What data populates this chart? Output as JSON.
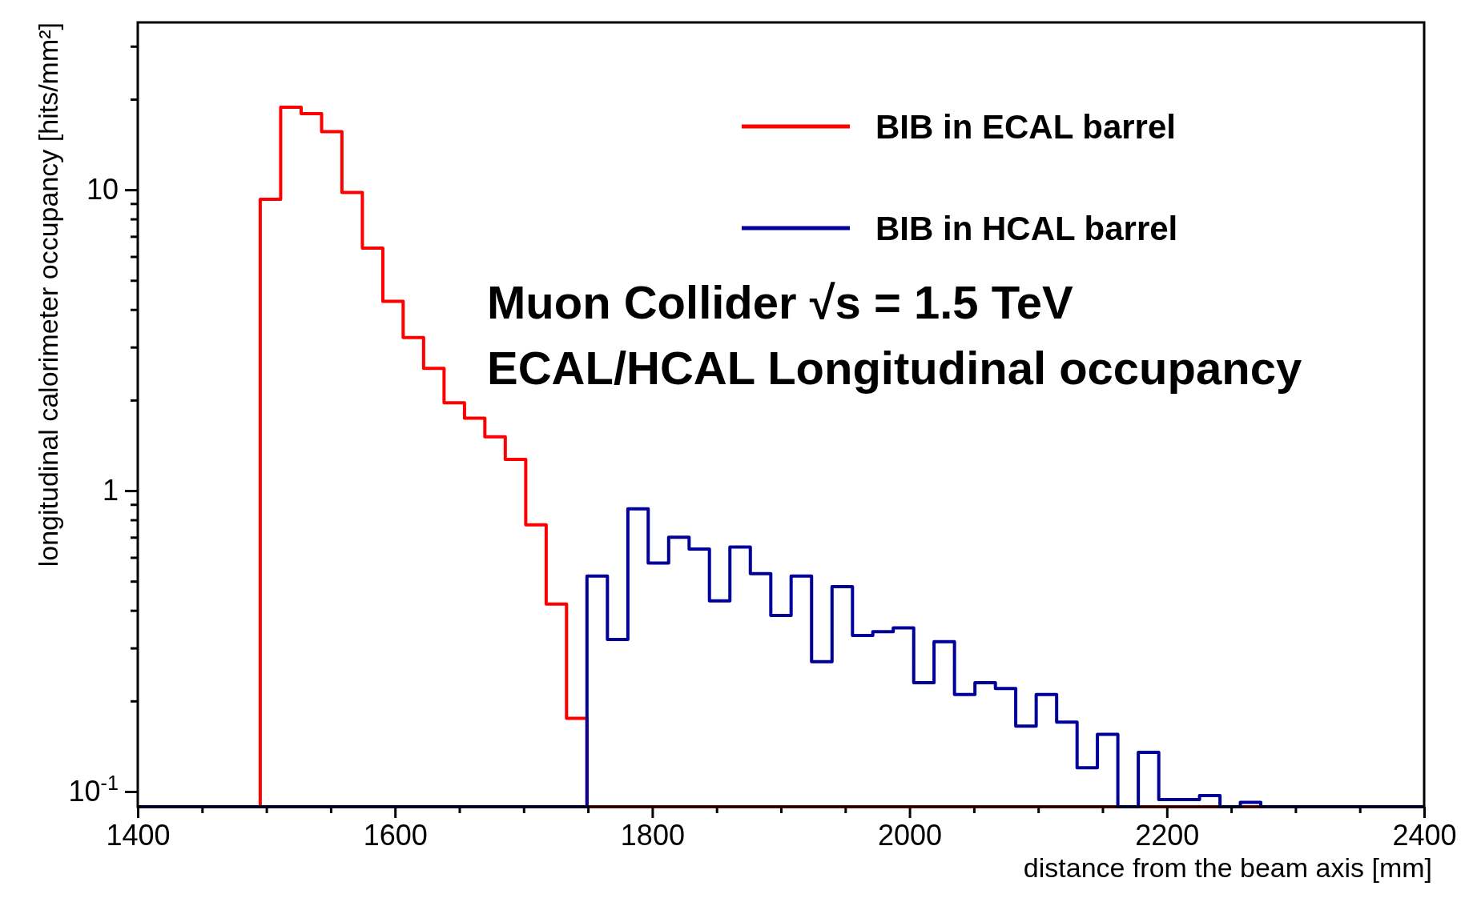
{
  "chart_data": {
    "type": "histogram",
    "xlabel": "distance from the beam axis [mm]",
    "ylabel": "longitudinal calorimeter occupancy [hits/mm²]",
    "bins": [
      1400,
      1415.9,
      1431.7,
      1447.6,
      1463.5,
      1479.4,
      1495.2,
      1511.1,
      1527,
      1542.9,
      1558.7,
      1574.6,
      1590.5,
      1606.3,
      1622.2,
      1638.1,
      1654,
      1669.8,
      1685.7,
      1701.6,
      1717.5,
      1733.3,
      1749.2,
      1765.1,
      1781,
      1796.8,
      1812.7,
      1828.6,
      1844.4,
      1860.3,
      1876.2,
      1892.1,
      1907.9,
      1923.8,
      1939.7,
      1955.6,
      1971.4,
      1987.3,
      2003.2,
      2019,
      2034.9,
      2050.8,
      2066.7,
      2082.5,
      2098.4,
      2114.3,
      2130.2,
      2146,
      2161.9,
      2177.8,
      2193.7,
      2209.5,
      2225.4,
      2241.3,
      2257.1,
      2273,
      2288.9,
      2304.8,
      2320.6,
      2336.5,
      2352.4,
      2368.3,
      2384.1,
      2400
    ],
    "series": [
      {
        "name": "BIB in ECAL barrel",
        "color": "#ff0000",
        "values": [
          null,
          null,
          null,
          null,
          null,
          null,
          9.3,
          18.8,
          17.9,
          15.6,
          9.8,
          6.4,
          4.26,
          3.23,
          2.55,
          1.96,
          1.74,
          1.51,
          1.27,
          0.77,
          0.42,
          0.175,
          null,
          null,
          null,
          null,
          null,
          null,
          null,
          null,
          null,
          null,
          null,
          null,
          null,
          null,
          null,
          null,
          null,
          null,
          null,
          null,
          null,
          null,
          null,
          null,
          null,
          null,
          null,
          null,
          null,
          null,
          null,
          null,
          null,
          null,
          null,
          null,
          null,
          null,
          null,
          null,
          null
        ]
      },
      {
        "name": "BIB in HCAL barrel",
        "color": "#000099",
        "values": [
          null,
          null,
          null,
          null,
          null,
          null,
          null,
          null,
          null,
          null,
          null,
          null,
          null,
          null,
          null,
          null,
          null,
          null,
          null,
          null,
          null,
          null,
          0.52,
          0.32,
          0.87,
          0.575,
          0.7,
          0.64,
          0.43,
          0.65,
          0.53,
          0.385,
          0.52,
          0.27,
          0.48,
          0.33,
          0.34,
          0.35,
          0.23,
          0.315,
          0.21,
          0.23,
          0.22,
          0.165,
          0.21,
          0.17,
          0.12,
          0.155,
          null,
          0.135,
          0.094,
          0.094,
          0.097,
          null,
          0.092,
          null,
          null,
          null,
          null,
          null,
          null,
          null,
          null
        ]
      }
    ],
    "log": "y",
    "xlim": [
      1400,
      2400
    ],
    "xticks": [
      1400,
      {
        "value": 1450,
        "label": null
      },
      {
        "value": 1500,
        "label": null
      },
      {
        "value": 1550,
        "label": null
      },
      1600,
      {
        "value": 1650,
        "label": null
      },
      {
        "value": 1700,
        "label": null
      },
      {
        "value": 1750,
        "label": null
      },
      1800,
      {
        "value": 1850,
        "label": null
      },
      {
        "value": 1900,
        "label": null
      },
      {
        "value": 1950,
        "label": null
      },
      2000,
      {
        "value": 2050,
        "label": null
      },
      {
        "value": 2100,
        "label": null
      },
      {
        "value": 2150,
        "label": null
      },
      2200,
      {
        "value": 2250,
        "label": null
      },
      {
        "value": 2300,
        "label": null
      },
      {
        "value": 2350,
        "label": null
      },
      2400
    ],
    "ylim": [
      0.089,
      36
    ],
    "yticks": [
      {
        "value": 0.1,
        "label": "10$^{-1}$"
      },
      {
        "value": 0.2,
        "label": null
      },
      {
        "value": 0.3,
        "label": null
      },
      {
        "value": 0.4,
        "label": null
      },
      {
        "value": 0.5,
        "label": null
      },
      {
        "value": 0.6,
        "label": null
      },
      {
        "value": 0.7,
        "label": null
      },
      {
        "value": 0.8,
        "label": null
      },
      {
        "value": 0.9,
        "label": null
      },
      1,
      {
        "value": 2,
        "label": null
      },
      {
        "value": 3,
        "label": null
      },
      {
        "value": 4,
        "label": null
      },
      {
        "value": 5,
        "label": null
      },
      {
        "value": 6,
        "label": null
      },
      {
        "value": 7,
        "label": null
      },
      {
        "value": 8,
        "label": null
      },
      {
        "value": 9,
        "label": null
      },
      10,
      {
        "value": 20,
        "label": null
      },
      {
        "value": 30,
        "label": null
      }
    ],
    "legend": "top right",
    "annotations": [
      "Muon Collider √s = 1.5 TeV",
      "ECAL/HCAL Longitudinal occupancy"
    ]
  }
}
